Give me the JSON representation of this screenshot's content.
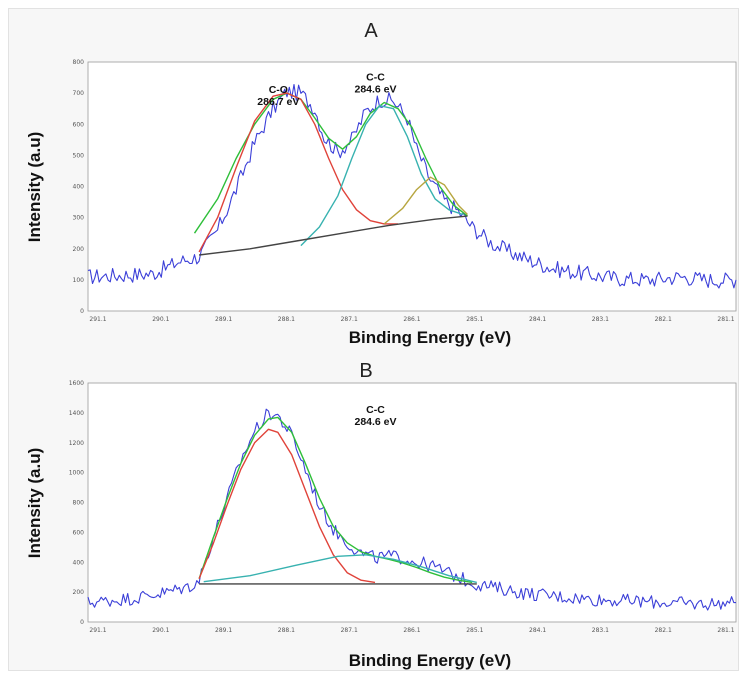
{
  "chart_data": [
    {
      "panel_label": "A",
      "type": "line",
      "xlabel": "Binding Energy (eV)",
      "ylabel": "Intensity (a.u)",
      "xlim": [
        292,
        278
      ],
      "ylim": [
        0,
        800
      ],
      "y_ticks": [
        "0",
        "100",
        "200",
        "300",
        "400",
        "500",
        "600",
        "700",
        "800"
      ],
      "x_ticks": [
        "291.1",
        "290.1",
        "289.1",
        "288.1",
        "287.1",
        "286.1",
        "285.1",
        "284.1",
        "283.1",
        "282.1",
        "281.1"
      ],
      "annotations": [
        {
          "line1": "C-C",
          "line2": "284.6 eV",
          "x": 284.6,
          "y": 740
        },
        {
          "line1": "C-O",
          "line2": "286.7 eV",
          "x": 286.7,
          "y": 700
        }
      ],
      "series": [
        {
          "role": "raw",
          "color": "#3b3fd8",
          "noise": 26,
          "points": [
            [
              292,
              110
            ],
            [
              290.6,
              120
            ],
            [
              290,
              160
            ],
            [
              289.6,
              175
            ],
            [
              289.2,
              260
            ],
            [
              288.8,
              390
            ],
            [
              288.4,
              540
            ],
            [
              288,
              650
            ],
            [
              287.7,
              705
            ],
            [
              287.4,
              700
            ],
            [
              287.1,
              650
            ],
            [
              286.9,
              560
            ],
            [
              286.6,
              510
            ],
            [
              286.3,
              550
            ],
            [
              286,
              640
            ],
            [
              285.7,
              680
            ],
            [
              285.4,
              675
            ],
            [
              285.1,
              620
            ],
            [
              284.9,
              520
            ],
            [
              284.6,
              420
            ],
            [
              284.3,
              355
            ],
            [
              284,
              320
            ],
            [
              283.7,
              270
            ],
            [
              283.3,
              220
            ],
            [
              282.9,
              190
            ],
            [
              282.4,
              160
            ],
            [
              281.9,
              135
            ],
            [
              281.3,
              120
            ],
            [
              280.6,
              105
            ],
            [
              279.9,
              100
            ],
            [
              279.2,
              110
            ],
            [
              278.6,
              100
            ],
            [
              278,
              100
            ]
          ]
        },
        {
          "role": "fit-envelope",
          "color": "#2fbf3a",
          "points": [
            [
              289.7,
              250
            ],
            [
              289.2,
              360
            ],
            [
              288.8,
              490
            ],
            [
              288.4,
              600
            ],
            [
              288,
              680
            ],
            [
              287.7,
              700
            ],
            [
              287.4,
              680
            ],
            [
              287.1,
              620
            ],
            [
              286.8,
              555
            ],
            [
              286.5,
              520
            ],
            [
              286.2,
              560
            ],
            [
              285.9,
              635
            ],
            [
              285.6,
              670
            ],
            [
              285.3,
              650
            ],
            [
              285,
              590
            ],
            [
              284.7,
              490
            ],
            [
              284.4,
              400
            ],
            [
              284.1,
              340
            ],
            [
              283.8,
              305
            ]
          ]
        },
        {
          "role": "component-1",
          "color": "#e0433a",
          "points": [
            [
              289.6,
              190
            ],
            [
              289.2,
              300
            ],
            [
              288.8,
              460
            ],
            [
              288.4,
              610
            ],
            [
              288,
              690
            ],
            [
              287.7,
              700
            ],
            [
              287.4,
              680
            ],
            [
              287.1,
              600
            ],
            [
              286.8,
              490
            ],
            [
              286.5,
              390
            ],
            [
              286.2,
              325
            ],
            [
              285.9,
              290
            ],
            [
              285.6,
              280
            ],
            [
              285.3,
              280
            ]
          ]
        },
        {
          "role": "component-2",
          "color": "#38b2b0",
          "points": [
            [
              287.4,
              210
            ],
            [
              287,
              270
            ],
            [
              286.6,
              370
            ],
            [
              286.3,
              490
            ],
            [
              286,
              600
            ],
            [
              285.7,
              660
            ],
            [
              285.4,
              650
            ],
            [
              285.1,
              560
            ],
            [
              284.8,
              440
            ],
            [
              284.5,
              360
            ],
            [
              284.2,
              325
            ],
            [
              283.9,
              310
            ]
          ]
        },
        {
          "role": "component-3",
          "color": "#b7a640",
          "points": [
            [
              285.6,
              280
            ],
            [
              285.2,
              330
            ],
            [
              284.9,
              390
            ],
            [
              284.6,
              430
            ],
            [
              284.3,
              405
            ],
            [
              284,
              340
            ],
            [
              283.8,
              310
            ]
          ]
        },
        {
          "role": "baseline",
          "color": "#444444",
          "points": [
            [
              289.6,
              180
            ],
            [
              288.5,
              200
            ],
            [
              287.5,
              225
            ],
            [
              286.5,
              250
            ],
            [
              285.5,
              275
            ],
            [
              284.5,
              295
            ],
            [
              283.8,
              305
            ]
          ]
        }
      ]
    },
    {
      "panel_label": "B",
      "type": "line",
      "xlabel": "Binding Energy (eV)",
      "ylabel": "Intensity (a.u)",
      "xlim": [
        292,
        278
      ],
      "ylim": [
        0,
        1600
      ],
      "y_ticks": [
        "0",
        "200",
        "400",
        "600",
        "800",
        "1000",
        "1200",
        "1400",
        "1600"
      ],
      "x_ticks": [
        "291.1",
        "290.1",
        "289.1",
        "288.1",
        "287.1",
        "286.1",
        "285.1",
        "284.1",
        "283.1",
        "282.1",
        "281.1"
      ],
      "annotations": [
        {
          "line1": "C-C",
          "line2": "284.6 eV",
          "x": 284.6,
          "y": 1400
        }
      ],
      "series": [
        {
          "role": "raw",
          "color": "#3b3fd8",
          "noise": 45,
          "points": [
            [
              292,
              130
            ],
            [
              291,
              160
            ],
            [
              290.3,
              200
            ],
            [
              289.8,
              240
            ],
            [
              289.6,
              280
            ],
            [
              289.3,
              560
            ],
            [
              289,
              820
            ],
            [
              288.7,
              1080
            ],
            [
              288.4,
              1280
            ],
            [
              288.1,
              1400
            ],
            [
              287.9,
              1380
            ],
            [
              287.6,
              1250
            ],
            [
              287.3,
              1020
            ],
            [
              287,
              780
            ],
            [
              286.7,
              620
            ],
            [
              286.4,
              530
            ],
            [
              286.1,
              460
            ],
            [
              285.8,
              430
            ],
            [
              285.5,
              440
            ],
            [
              285.2,
              430
            ],
            [
              284.9,
              400
            ],
            [
              284.6,
              380
            ],
            [
              284.3,
              340
            ],
            [
              284,
              300
            ],
            [
              283.7,
              260
            ],
            [
              283.2,
              230
            ],
            [
              282.5,
              190
            ],
            [
              281.8,
              170
            ],
            [
              281,
              150
            ],
            [
              280.2,
              140
            ],
            [
              279.5,
              130
            ],
            [
              278.8,
              120
            ],
            [
              278,
              130
            ]
          ]
        },
        {
          "role": "fit-envelope",
          "color": "#2fbf3a",
          "points": [
            [
              289.6,
              290
            ],
            [
              289.3,
              560
            ],
            [
              289,
              820
            ],
            [
              288.7,
              1060
            ],
            [
              288.4,
              1250
            ],
            [
              288.1,
              1360
            ],
            [
              287.9,
              1370
            ],
            [
              287.6,
              1270
            ],
            [
              287.3,
              1060
            ],
            [
              287,
              830
            ],
            [
              286.7,
              640
            ],
            [
              286.4,
              530
            ],
            [
              286.1,
              470
            ],
            [
              285.8,
              440
            ],
            [
              285.5,
              420
            ],
            [
              285.2,
              395
            ],
            [
              284.9,
              365
            ],
            [
              284.6,
              330
            ],
            [
              284.3,
              300
            ],
            [
              284,
              280
            ],
            [
              283.7,
              265
            ]
          ]
        },
        {
          "role": "component-1",
          "color": "#e0433a",
          "points": [
            [
              289.6,
              290
            ],
            [
              289.3,
              520
            ],
            [
              289,
              780
            ],
            [
              288.7,
              1020
            ],
            [
              288.4,
              1200
            ],
            [
              288.1,
              1290
            ],
            [
              287.9,
              1270
            ],
            [
              287.6,
              1120
            ],
            [
              287.3,
              880
            ],
            [
              287,
              640
            ],
            [
              286.7,
              450
            ],
            [
              286.4,
              330
            ],
            [
              286.1,
              280
            ],
            [
              285.8,
              265
            ]
          ]
        },
        {
          "role": "component-2",
          "color": "#38b2b0",
          "points": [
            [
              289.5,
              270
            ],
            [
              288.5,
              310
            ],
            [
              287.5,
              380
            ],
            [
              286.6,
              440
            ],
            [
              286,
              450
            ],
            [
              285.4,
              420
            ],
            [
              284.8,
              370
            ],
            [
              284.2,
              310
            ],
            [
              283.6,
              265
            ]
          ]
        },
        {
          "role": "baseline",
          "color": "#444444",
          "points": [
            [
              289.6,
              255
            ],
            [
              283.6,
              255
            ]
          ]
        }
      ]
    }
  ]
}
